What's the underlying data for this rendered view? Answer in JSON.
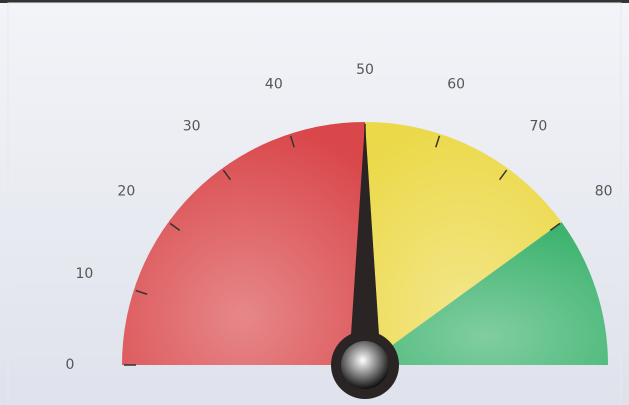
{
  "chart_data": {
    "type": "gauge",
    "value": 50,
    "ylim": [
      0,
      100
    ],
    "yticks": [
      0,
      10,
      20,
      30,
      40,
      50,
      60,
      70,
      80
    ],
    "bands": [
      {
        "from": 0,
        "to": 50,
        "color": "#d9474a"
      },
      {
        "from": 50,
        "to": 80,
        "color": "#ecd94a"
      },
      {
        "from": 80,
        "to": 100,
        "color": "#3db36e"
      }
    ],
    "needle_color": "#2a2424"
  }
}
